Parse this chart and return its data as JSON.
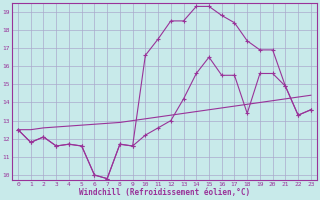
{
  "xlabel": "Windchill (Refroidissement éolien,°C)",
  "bg_color": "#c8eaea",
  "line_color": "#993399",
  "grid_color": "#aaaacc",
  "x_values": [
    0,
    1,
    2,
    3,
    4,
    5,
    6,
    7,
    8,
    9,
    10,
    11,
    12,
    13,
    14,
    15,
    16,
    17,
    18,
    19,
    20,
    21,
    22,
    23
  ],
  "line1_temp": [
    12.5,
    11.8,
    12.1,
    11.6,
    11.7,
    11.6,
    10.0,
    9.8,
    11.7,
    11.6,
    12.2,
    12.6,
    13.0,
    14.2,
    15.6,
    16.5,
    15.5,
    15.5,
    13.4,
    15.6,
    15.6,
    14.9,
    13.3,
    13.6
  ],
  "line2_wc": [
    12.5,
    11.8,
    12.1,
    11.6,
    11.7,
    11.6,
    10.0,
    9.8,
    11.7,
    11.6,
    16.6,
    17.5,
    18.5,
    18.5,
    19.3,
    19.3,
    18.8,
    18.4,
    17.4,
    16.9,
    16.9,
    14.9,
    13.3,
    13.6
  ],
  "line3_ref": [
    12.5,
    12.5,
    12.6,
    12.65,
    12.7,
    12.75,
    12.8,
    12.85,
    12.9,
    13.0,
    13.1,
    13.2,
    13.3,
    13.4,
    13.5,
    13.6,
    13.7,
    13.8,
    13.9,
    14.0,
    14.1,
    14.2,
    14.3,
    14.4
  ],
  "ylim": [
    9.7,
    19.5
  ],
  "yticks": [
    10,
    11,
    12,
    13,
    14,
    15,
    16,
    17,
    18,
    19
  ],
  "xlim": [
    -0.5,
    23.5
  ]
}
